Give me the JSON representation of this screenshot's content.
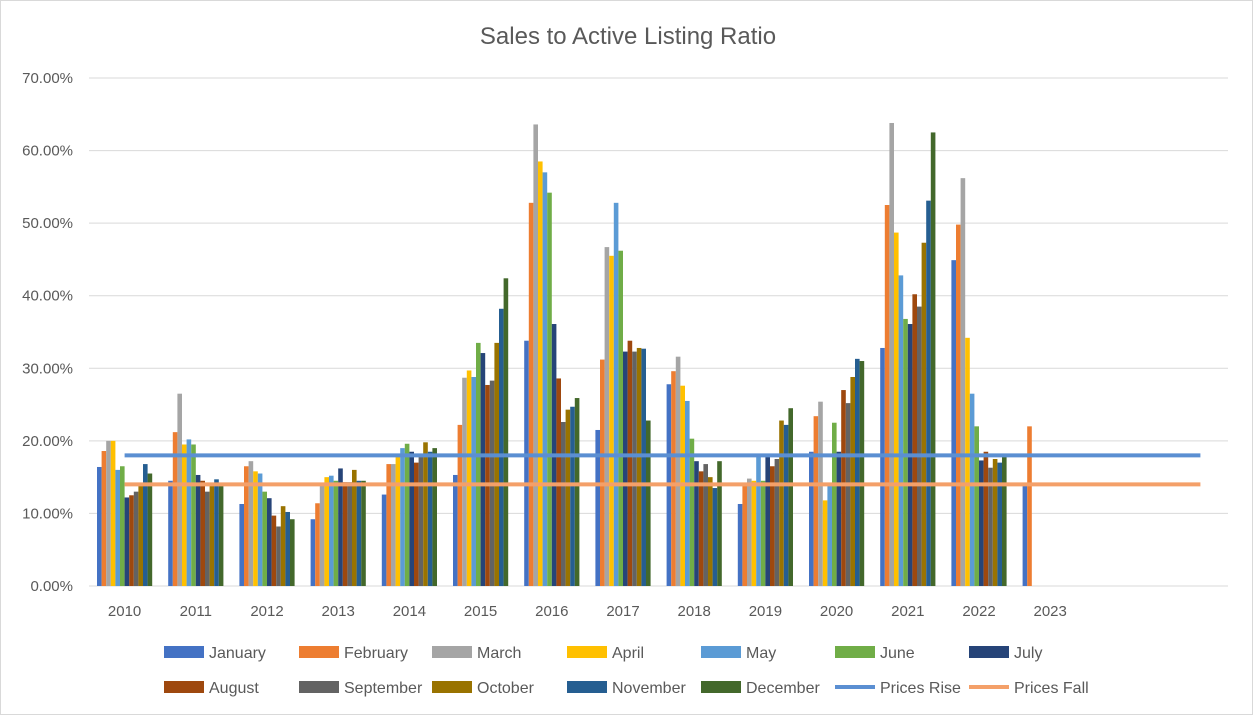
{
  "chart_data": {
    "type": "bar",
    "title": "Sales to Active Listing Ratio",
    "xlabel": "",
    "ylabel": "",
    "ylim": [
      0,
      0.7
    ],
    "y_ticks": [
      0,
      0.1,
      0.2,
      0.3,
      0.4,
      0.5,
      0.6,
      0.7
    ],
    "y_tick_labels": [
      "0.00%",
      "10.00%",
      "20.00%",
      "30.00%",
      "40.00%",
      "50.00%",
      "60.00%",
      "70.00%"
    ],
    "grid": true,
    "legend_position": "bottom",
    "categories": [
      "2010",
      "2011",
      "2012",
      "2013",
      "2014",
      "2015",
      "2016",
      "2017",
      "2018",
      "2019",
      "2020",
      "2021",
      "2022",
      "2023"
    ],
    "series": [
      {
        "name": "January",
        "color": "#4472C4",
        "values": [
          0.164,
          0.145,
          0.113,
          0.092,
          0.126,
          0.153,
          0.338,
          0.215,
          0.278,
          0.113,
          0.185,
          0.328,
          0.449,
          0.138
        ]
      },
      {
        "name": "February",
        "color": "#ED7D31",
        "values": [
          0.186,
          0.212,
          0.165,
          0.114,
          0.168,
          0.222,
          0.528,
          0.312,
          0.296,
          0.142,
          0.234,
          0.525,
          0.498,
          0.22
        ]
      },
      {
        "name": "March",
        "color": "#A5A5A5",
        "values": [
          0.2,
          0.265,
          0.172,
          0.14,
          0.168,
          0.287,
          0.636,
          0.467,
          0.316,
          0.148,
          0.254,
          0.638,
          0.562,
          null
        ]
      },
      {
        "name": "April",
        "color": "#FFC000",
        "values": [
          0.2,
          0.195,
          0.158,
          0.15,
          0.178,
          0.297,
          0.585,
          0.455,
          0.276,
          0.145,
          0.118,
          0.487,
          0.342,
          null
        ]
      },
      {
        "name": "May",
        "color": "#5B9BD5",
        "values": [
          0.16,
          0.202,
          0.155,
          0.152,
          0.19,
          0.288,
          0.57,
          0.528,
          0.255,
          0.178,
          0.138,
          0.428,
          0.265,
          null
        ]
      },
      {
        "name": "June",
        "color": "#70AD47",
        "values": [
          0.165,
          0.195,
          0.13,
          0.145,
          0.196,
          0.335,
          0.542,
          0.462,
          0.203,
          0.145,
          0.225,
          0.368,
          0.22,
          null
        ]
      },
      {
        "name": "July",
        "color": "#264478",
        "values": [
          0.122,
          0.153,
          0.121,
          0.162,
          0.185,
          0.321,
          0.361,
          0.323,
          0.172,
          0.178,
          0.185,
          0.361,
          0.173,
          null
        ]
      },
      {
        "name": "August",
        "color": "#9E480E",
        "values": [
          0.125,
          0.145,
          0.097,
          0.143,
          0.17,
          0.277,
          0.286,
          0.338,
          0.158,
          0.165,
          0.27,
          0.402,
          0.185,
          null
        ]
      },
      {
        "name": "September",
        "color": "#636363",
        "values": [
          0.13,
          0.13,
          0.082,
          0.143,
          0.178,
          0.283,
          0.226,
          0.323,
          0.168,
          0.175,
          0.252,
          0.385,
          0.163,
          null
        ]
      },
      {
        "name": "October",
        "color": "#997300",
        "values": [
          0.14,
          0.142,
          0.11,
          0.16,
          0.198,
          0.335,
          0.243,
          0.328,
          0.15,
          0.228,
          0.288,
          0.473,
          0.175,
          null
        ]
      },
      {
        "name": "November",
        "color": "#255E91",
        "values": [
          0.168,
          0.147,
          0.102,
          0.145,
          0.185,
          0.382,
          0.247,
          0.327,
          0.135,
          0.222,
          0.313,
          0.531,
          0.17,
          null
        ]
      },
      {
        "name": "December",
        "color": "#43682B",
        "values": [
          0.155,
          0.14,
          0.092,
          0.145,
          0.19,
          0.424,
          0.259,
          0.228,
          0.172,
          0.245,
          0.31,
          0.625,
          0.18,
          null
        ]
      }
    ],
    "reference_lines": [
      {
        "name": "Prices Rise",
        "color": "#5B8FD2",
        "value": 0.18
      },
      {
        "name": "Prices Fall",
        "color": "#F4A069",
        "value": 0.14
      }
    ]
  }
}
